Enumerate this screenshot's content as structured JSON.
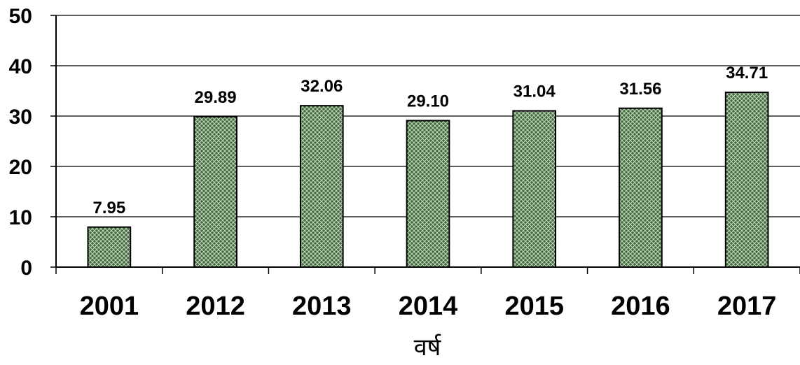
{
  "chart_data": {
    "type": "bar",
    "title": "",
    "xlabel": "वर्ष",
    "ylabel": "",
    "ylim": [
      0,
      50
    ],
    "yticks": [
      0,
      10,
      20,
      30,
      40,
      50
    ],
    "grid": true,
    "legend": "none",
    "categories": [
      "2001",
      "2012",
      "2013",
      "2014",
      "2015",
      "2016",
      "2017"
    ],
    "values": [
      7.95,
      29.89,
      32.06,
      29.1,
      31.04,
      31.56,
      34.71
    ],
    "data_labels": [
      "7.95",
      "29.89",
      "32.06",
      "29.10",
      "31.04",
      "31.56",
      "34.71"
    ],
    "colors": {
      "bar_fill": "#3f6b3a",
      "bar_pattern": "#c9d7c4",
      "bar_stroke": "#000000",
      "grid": "#000000",
      "axis": "#000000"
    }
  }
}
